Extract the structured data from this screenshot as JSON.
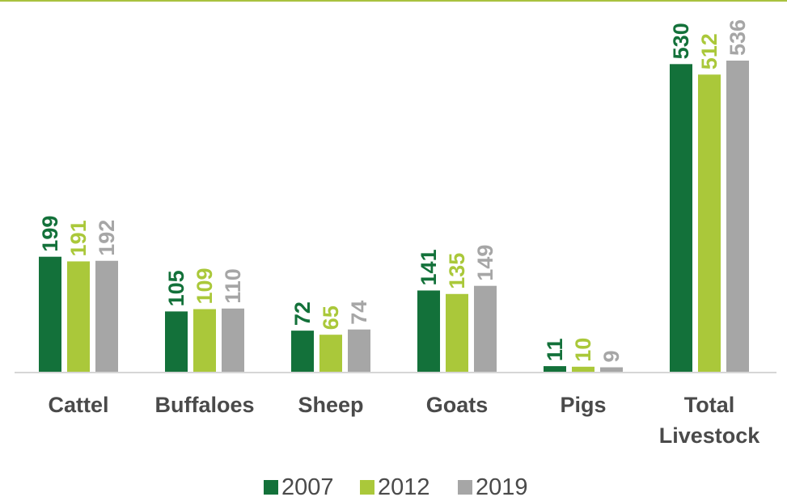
{
  "chart_data": {
    "type": "bar",
    "categories": [
      [
        "Cattel"
      ],
      [
        "Buffaloes"
      ],
      [
        "Sheep"
      ],
      [
        "Goats"
      ],
      [
        "Pigs"
      ],
      [
        "Total",
        "Livestock"
      ]
    ],
    "series": [
      {
        "name": "2007",
        "values": [
          199,
          105,
          72,
          141,
          11,
          530
        ],
        "color": "#13713a"
      },
      {
        "name": "2012",
        "values": [
          191,
          109,
          65,
          135,
          10,
          512
        ],
        "color": "#aac83a"
      },
      {
        "name": "2019",
        "values": [
          192,
          110,
          74,
          149,
          9,
          536
        ],
        "color": "#a6a6a6"
      }
    ],
    "title": "",
    "xlabel": "",
    "ylabel": "",
    "ylim": [
      0,
      536
    ],
    "grid": false,
    "legend": "bottom",
    "data_labels": "rotated-vertical"
  }
}
